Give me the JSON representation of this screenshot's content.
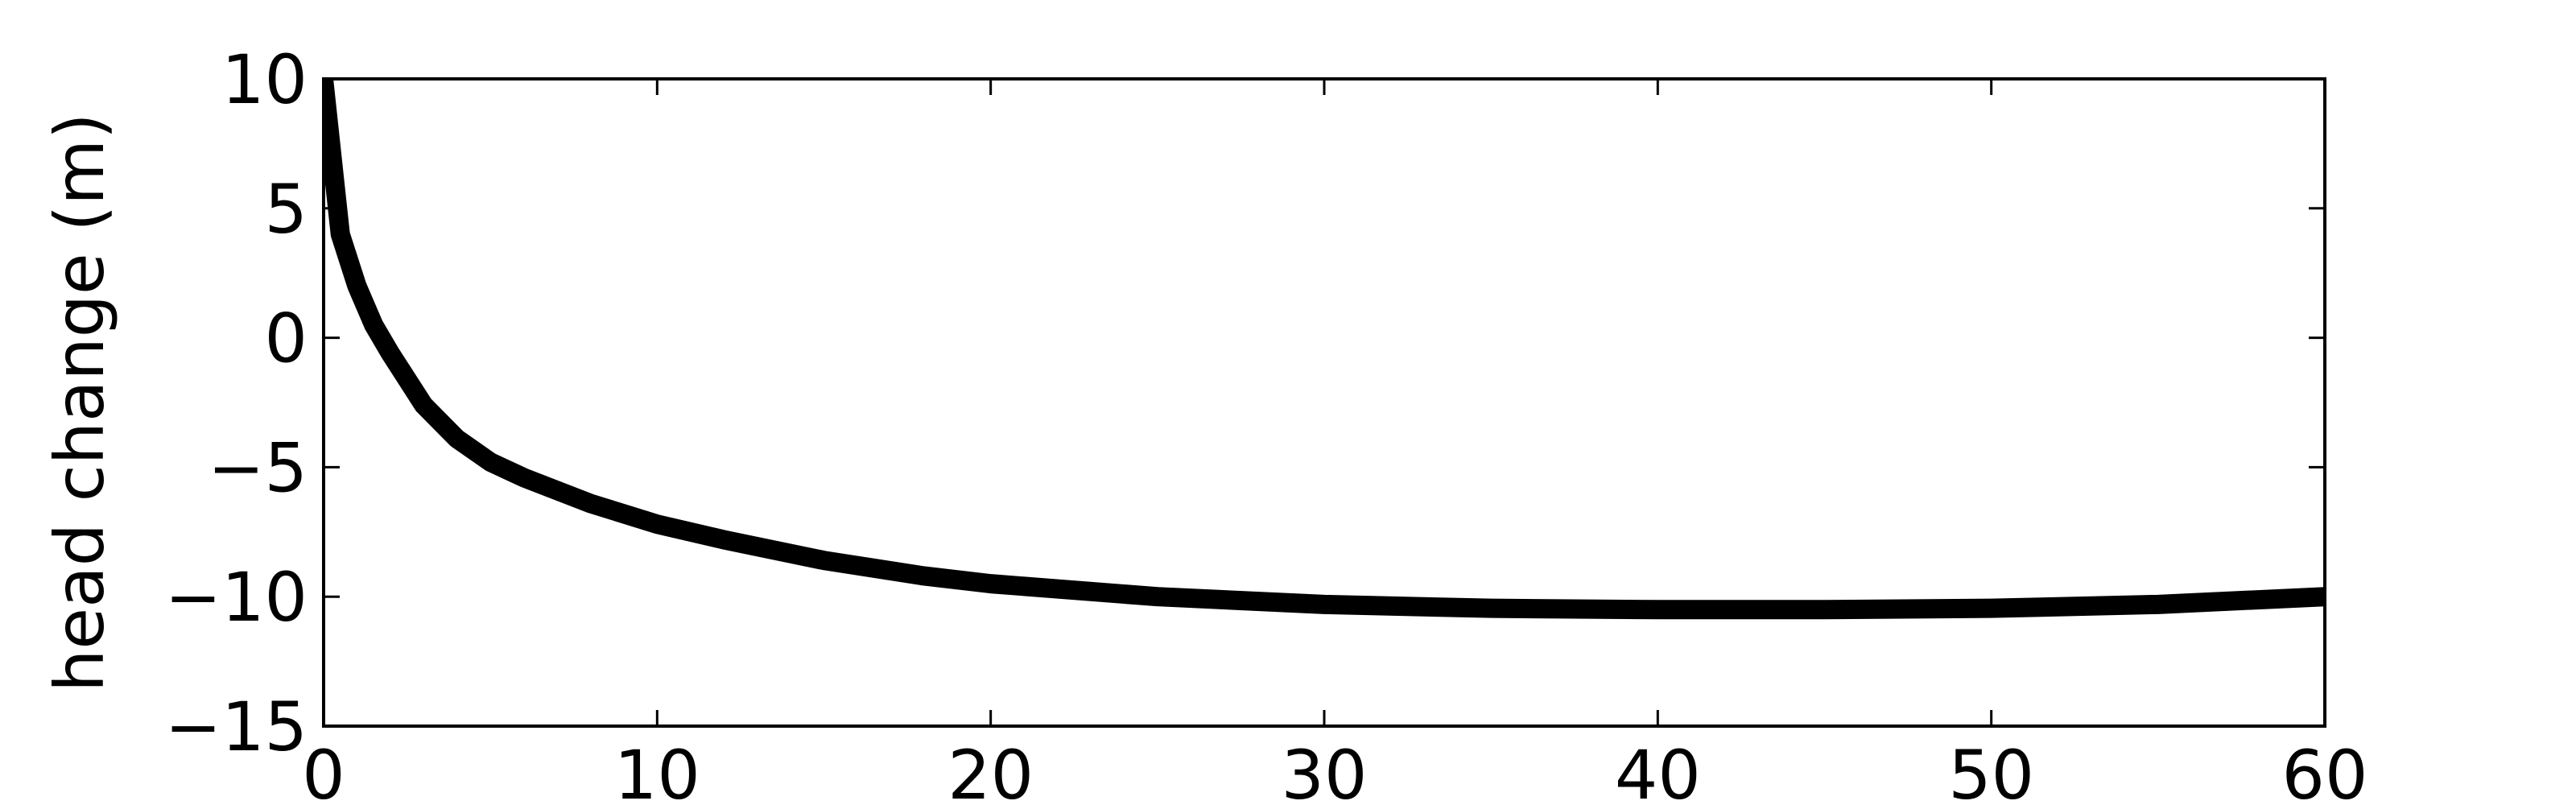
{
  "chart_data": {
    "type": "line",
    "title": "",
    "xlabel": "",
    "ylabel": "head change (m)",
    "xlim": [
      0,
      60
    ],
    "ylim": [
      -15,
      10
    ],
    "xticks": [
      0,
      10,
      20,
      30,
      40,
      50,
      60
    ],
    "yticks": [
      10,
      5,
      0,
      -5,
      -10,
      -15
    ],
    "xtick_labels": [
      "0",
      "10",
      "20",
      "30",
      "40",
      "50",
      "60"
    ],
    "ytick_labels": [
      "10",
      "5",
      "0",
      "−5",
      "−10",
      "−15"
    ],
    "grid": false,
    "line_color": "#000000",
    "series": [
      {
        "x": [
          0,
          0.5,
          1,
          1.5,
          2,
          3,
          4,
          5,
          6,
          8,
          10,
          12,
          15,
          18,
          20,
          25,
          30,
          35,
          40,
          45,
          50,
          55,
          60
        ],
        "y": [
          10,
          4.0,
          2.0,
          0.5,
          -0.6,
          -2.6,
          -3.9,
          -4.8,
          -5.4,
          -6.4,
          -7.2,
          -7.8,
          -8.6,
          -9.2,
          -9.5,
          -10.0,
          -10.3,
          -10.45,
          -10.5,
          -10.5,
          -10.45,
          -10.3,
          -10.0
        ]
      }
    ]
  }
}
